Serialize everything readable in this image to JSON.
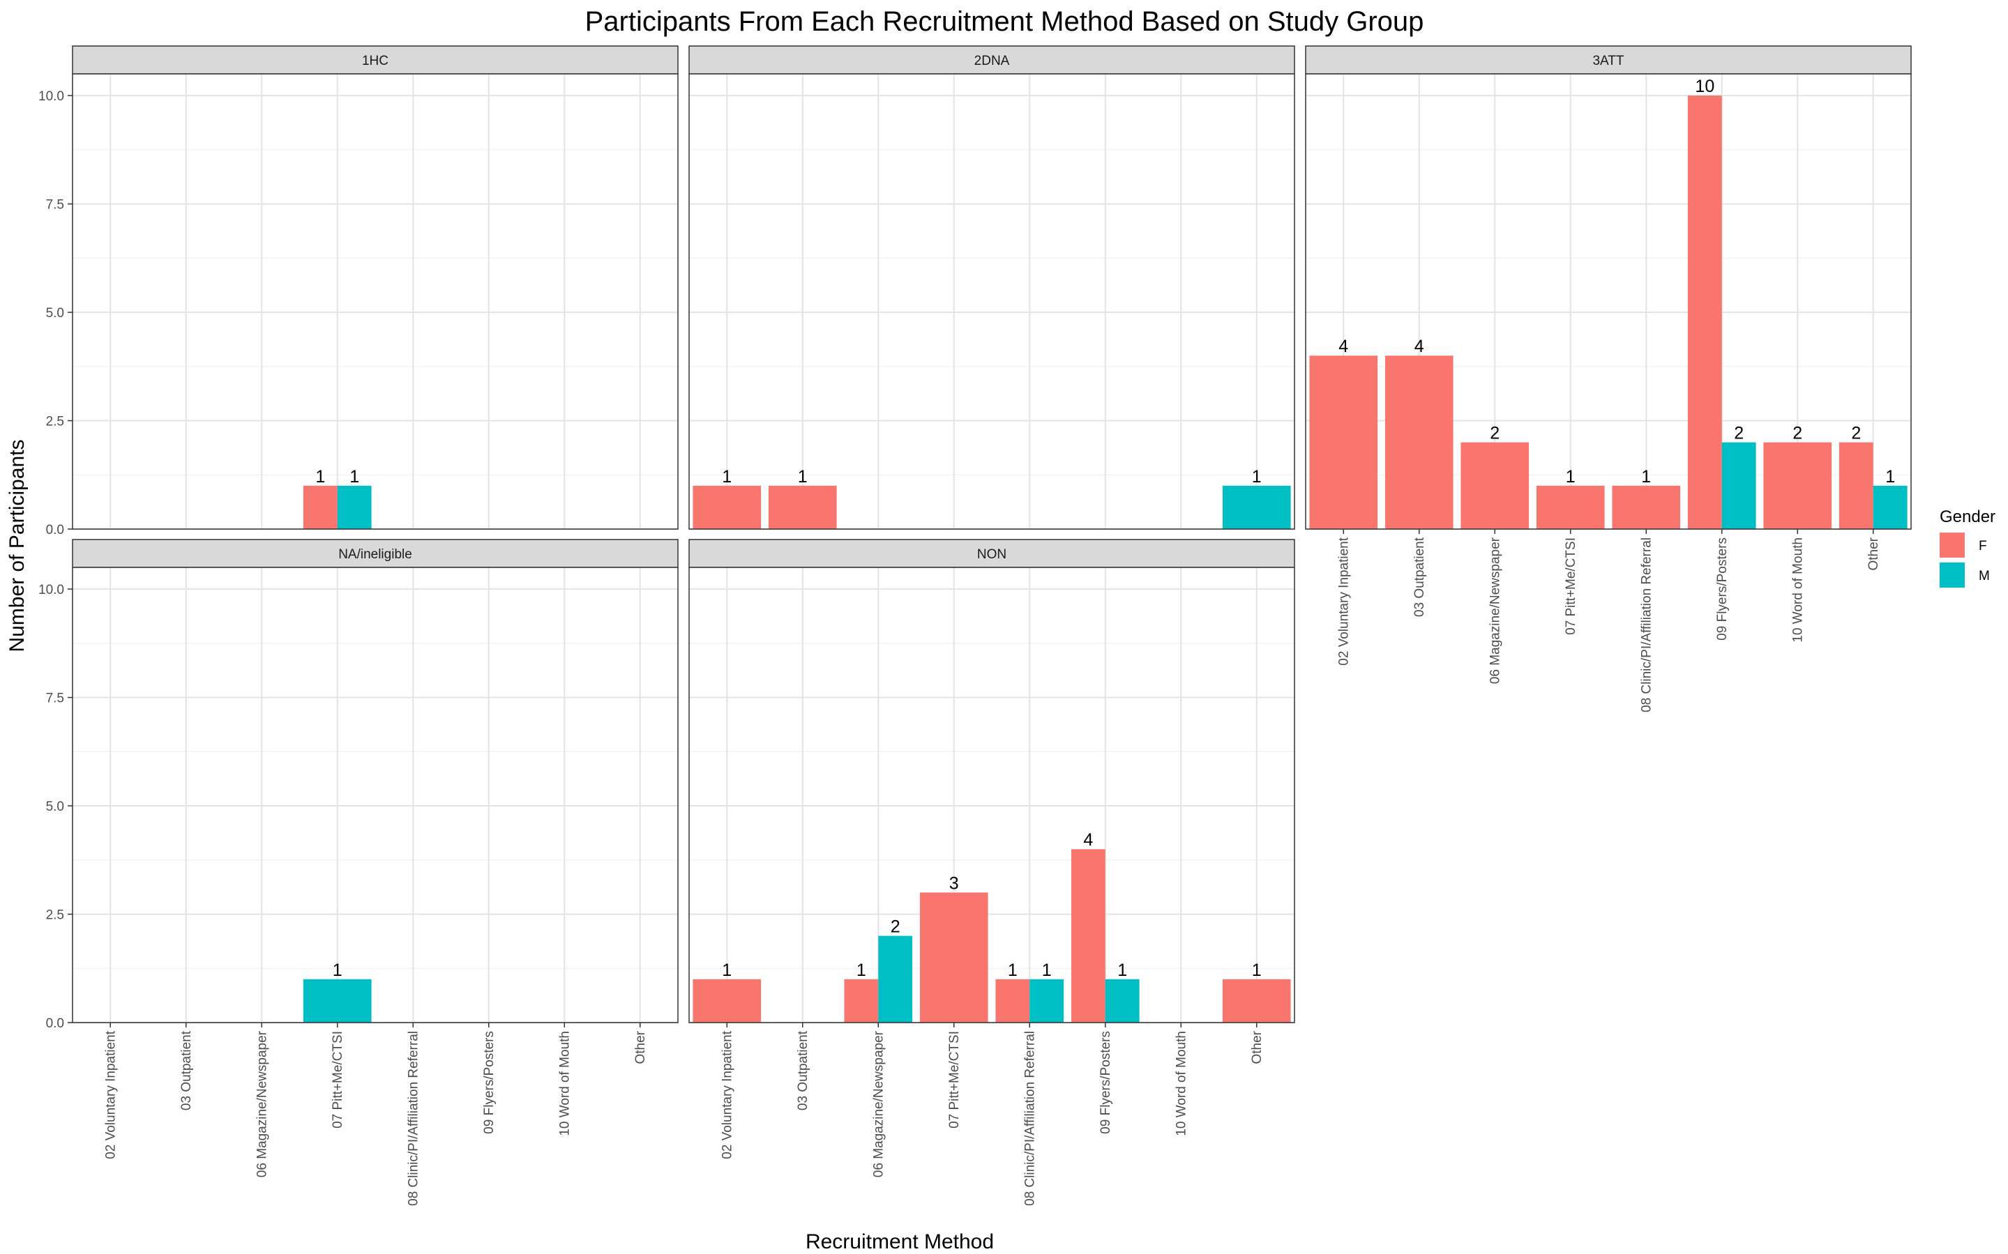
{
  "chart_data": {
    "type": "bar",
    "title": "Participants From Each Recruitment Method Based on Study Group",
    "xlabel": "Recruitment Method",
    "ylabel": "Number of Participants",
    "ylim": [
      0,
      10.5
    ],
    "yticks": [
      "0.0",
      "2.5",
      "5.0",
      "7.5",
      "10.0"
    ],
    "categories": [
      "02 Voluntary Inpatient",
      "03 Outpatient",
      "06 Magazine/Newspaper",
      "07 Pitt+Me/CTSI",
      "08 Clinic/PI/Affiliation Referral",
      "09 Flyers/Posters",
      "10 Word of Mouth",
      "Other"
    ],
    "legend": {
      "title": "Gender",
      "position": "right",
      "entries": [
        {
          "label": "F",
          "color": "#F8766D"
        },
        {
          "label": "M",
          "color": "#00BFC4"
        }
      ]
    },
    "grid": true,
    "panels": [
      {
        "name": "1HC",
        "bars": [
          {
            "category": "07 Pitt+Me/CTSI",
            "gender": "F",
            "value": 1
          },
          {
            "category": "07 Pitt+Me/CTSI",
            "gender": "M",
            "value": 1
          }
        ]
      },
      {
        "name": "2DNA",
        "bars": [
          {
            "category": "02 Voluntary Inpatient",
            "gender": "F",
            "value": 1
          },
          {
            "category": "03 Outpatient",
            "gender": "F",
            "value": 1
          },
          {
            "category": "Other",
            "gender": "M",
            "value": 1
          }
        ]
      },
      {
        "name": "3ATT",
        "bars": [
          {
            "category": "02 Voluntary Inpatient",
            "gender": "F",
            "value": 4
          },
          {
            "category": "03 Outpatient",
            "gender": "F",
            "value": 4
          },
          {
            "category": "06 Magazine/Newspaper",
            "gender": "F",
            "value": 2
          },
          {
            "category": "07 Pitt+Me/CTSI",
            "gender": "F",
            "value": 1
          },
          {
            "category": "08 Clinic/PI/Affiliation Referral",
            "gender": "F",
            "value": 1
          },
          {
            "category": "09 Flyers/Posters",
            "gender": "F",
            "value": 10
          },
          {
            "category": "09 Flyers/Posters",
            "gender": "M",
            "value": 2
          },
          {
            "category": "10 Word of Mouth",
            "gender": "F",
            "value": 2
          },
          {
            "category": "Other",
            "gender": "F",
            "value": 2
          },
          {
            "category": "Other",
            "gender": "M",
            "value": 1
          }
        ]
      },
      {
        "name": "NA/ineligible",
        "bars": [
          {
            "category": "07 Pitt+Me/CTSI",
            "gender": "M",
            "value": 1
          }
        ]
      },
      {
        "name": "NON",
        "bars": [
          {
            "category": "02 Voluntary Inpatient",
            "gender": "F",
            "value": 1
          },
          {
            "category": "06 Magazine/Newspaper",
            "gender": "F",
            "value": 1
          },
          {
            "category": "06 Magazine/Newspaper",
            "gender": "M",
            "value": 2
          },
          {
            "category": "07 Pitt+Me/CTSI",
            "gender": "F",
            "value": 3
          },
          {
            "category": "08 Clinic/PI/Affiliation Referral",
            "gender": "F",
            "value": 1
          },
          {
            "category": "08 Clinic/PI/Affiliation Referral",
            "gender": "M",
            "value": 1
          },
          {
            "category": "09 Flyers/Posters",
            "gender": "F",
            "value": 4
          },
          {
            "category": "09 Flyers/Posters",
            "gender": "M",
            "value": 1
          },
          {
            "category": "Other",
            "gender": "F",
            "value": 1
          }
        ]
      }
    ]
  }
}
